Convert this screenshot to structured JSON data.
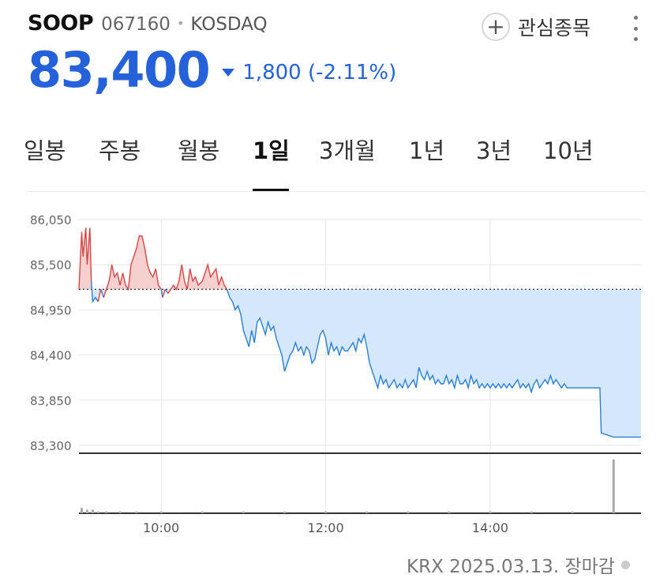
{
  "stock": {
    "name": "SOOP",
    "code": "067160",
    "market": "KOSDAQ",
    "price": "83,400",
    "change": "1,800 (-2.11%)",
    "direction": "down"
  },
  "actions": {
    "watch_label": "관심종목",
    "plus_glyph": "+"
  },
  "tabs": [
    {
      "label": "일봉",
      "active": false
    },
    {
      "label": "주봉",
      "active": false
    },
    {
      "label": "월봉",
      "active": false
    },
    {
      "label": "1일",
      "active": true
    },
    {
      "label": "3개월",
      "active": false
    },
    {
      "label": "1년",
      "active": false
    },
    {
      "label": "3년",
      "active": false
    },
    {
      "label": "10년",
      "active": false
    }
  ],
  "footer": {
    "text": "KRX 2025.03.13. 장마감"
  },
  "colors": {
    "accent": "#2561d8",
    "up": "#d64646",
    "down": "#2a7fd4",
    "down_fill": "#d5e8fb",
    "up_fill": "#f6cfcf"
  },
  "chart_data": {
    "type": "line",
    "title": "",
    "xlabel": "",
    "ylabel": "",
    "y_ticks": [
      "86,050",
      "85,500",
      "84,950",
      "84,400",
      "83,850",
      "83,300"
    ],
    "y_tick_values": [
      86050,
      85500,
      84950,
      84400,
      83850,
      83300
    ],
    "ylim": [
      83300,
      86050
    ],
    "x_ticks": [
      "10:00",
      "12:00",
      "14:00"
    ],
    "x_tick_times": [
      "10:00",
      "12:00",
      "14:00"
    ],
    "xlim": [
      "09:00",
      "15:50"
    ],
    "previous_close": 85200,
    "grid": true,
    "series": [
      {
        "values": [
          [
            "09:00",
            85200
          ],
          [
            "09:02",
            85900
          ],
          [
            "09:03",
            85600
          ],
          [
            "09:05",
            85950
          ],
          [
            "09:06",
            85500
          ],
          [
            "09:08",
            85950
          ],
          [
            "09:09",
            85300
          ],
          [
            "09:10",
            85050
          ],
          [
            "09:12",
            85100
          ],
          [
            "09:14",
            85050
          ],
          [
            "09:16",
            85200
          ],
          [
            "09:18",
            85100
          ],
          [
            "09:20",
            85200
          ],
          [
            "09:22",
            85300
          ],
          [
            "09:24",
            85500
          ],
          [
            "09:26",
            85350
          ],
          [
            "09:28",
            85400
          ],
          [
            "09:30",
            85250
          ],
          [
            "09:32",
            85400
          ],
          [
            "09:34",
            85250
          ],
          [
            "09:36",
            85200
          ],
          [
            "09:38",
            85500
          ],
          [
            "09:40",
            85600
          ],
          [
            "09:42",
            85700
          ],
          [
            "09:44",
            85850
          ],
          [
            "09:46",
            85850
          ],
          [
            "09:48",
            85700
          ],
          [
            "09:50",
            85500
          ],
          [
            "09:52",
            85400
          ],
          [
            "09:54",
            85350
          ],
          [
            "09:56",
            85450
          ],
          [
            "09:58",
            85250
          ],
          [
            "10:00",
            85200
          ],
          [
            "10:01",
            85100
          ],
          [
            "10:03",
            85200
          ],
          [
            "10:05",
            85150
          ],
          [
            "10:07",
            85200
          ],
          [
            "10:09",
            85250
          ],
          [
            "10:11",
            85200
          ],
          [
            "10:13",
            85300
          ],
          [
            "10:15",
            85500
          ],
          [
            "10:17",
            85300
          ],
          [
            "10:19",
            85200
          ],
          [
            "10:21",
            85450
          ],
          [
            "10:23",
            85300
          ],
          [
            "10:25",
            85350
          ],
          [
            "10:27",
            85250
          ],
          [
            "10:30",
            85300
          ],
          [
            "10:32",
            85400
          ],
          [
            "10:34",
            85500
          ],
          [
            "10:36",
            85350
          ],
          [
            "10:38",
            85400
          ],
          [
            "10:40",
            85450
          ],
          [
            "10:42",
            85250
          ],
          [
            "10:44",
            85350
          ],
          [
            "10:46",
            85250
          ],
          [
            "10:48",
            85200
          ],
          [
            "10:50",
            85100
          ],
          [
            "10:52",
            85050
          ],
          [
            "10:54",
            84950
          ],
          [
            "10:56",
            85000
          ],
          [
            "10:58",
            84900
          ],
          [
            "11:00",
            84700
          ],
          [
            "11:02",
            84600
          ],
          [
            "11:04",
            84500
          ],
          [
            "11:06",
            84700
          ],
          [
            "11:08",
            84550
          ],
          [
            "11:10",
            84800
          ],
          [
            "11:12",
            84850
          ],
          [
            "11:14",
            84750
          ],
          [
            "11:16",
            84650
          ],
          [
            "11:18",
            84800
          ],
          [
            "11:20",
            84700
          ],
          [
            "11:22",
            84750
          ],
          [
            "11:24",
            84600
          ],
          [
            "11:26",
            84500
          ],
          [
            "11:28",
            84400
          ],
          [
            "11:30",
            84200
          ],
          [
            "11:32",
            84300
          ],
          [
            "11:34",
            84400
          ],
          [
            "11:36",
            84450
          ],
          [
            "11:38",
            84550
          ],
          [
            "11:40",
            84450
          ],
          [
            "11:42",
            84500
          ],
          [
            "11:44",
            84400
          ],
          [
            "11:46",
            84500
          ],
          [
            "11:48",
            84450
          ],
          [
            "11:50",
            84300
          ],
          [
            "11:52",
            84350
          ],
          [
            "11:54",
            84500
          ],
          [
            "11:56",
            84650
          ],
          [
            "11:58",
            84700
          ],
          [
            "12:00",
            84600
          ],
          [
            "12:02",
            84400
          ],
          [
            "12:04",
            84550
          ],
          [
            "12:06",
            84450
          ],
          [
            "12:08",
            84500
          ],
          [
            "12:10",
            84400
          ],
          [
            "12:12",
            84500
          ],
          [
            "12:14",
            84450
          ],
          [
            "12:16",
            84450
          ],
          [
            "12:18",
            84500
          ],
          [
            "12:20",
            84550
          ],
          [
            "12:22",
            84450
          ],
          [
            "12:24",
            84600
          ],
          [
            "12:26",
            84550
          ],
          [
            "12:28",
            84650
          ],
          [
            "12:30",
            84500
          ],
          [
            "12:32",
            84300
          ],
          [
            "12:34",
            84200
          ],
          [
            "12:36",
            84100
          ],
          [
            "12:38",
            84000
          ],
          [
            "12:40",
            84150
          ],
          [
            "12:42",
            84050
          ],
          [
            "12:44",
            84100
          ],
          [
            "12:46",
            84000
          ],
          [
            "12:48",
            84050
          ],
          [
            "12:50",
            84100
          ],
          [
            "12:52",
            84000
          ],
          [
            "12:54",
            84050
          ],
          [
            "12:56",
            84000
          ],
          [
            "12:58",
            84100
          ],
          [
            "13:00",
            84000
          ],
          [
            "13:02",
            84050
          ],
          [
            "13:04",
            84100
          ],
          [
            "13:06",
            84000
          ],
          [
            "13:08",
            84250
          ],
          [
            "13:10",
            84150
          ],
          [
            "13:12",
            84100
          ],
          [
            "13:14",
            84200
          ],
          [
            "13:16",
            84100
          ],
          [
            "13:18",
            84150
          ],
          [
            "13:20",
            84050
          ],
          [
            "13:22",
            84100
          ],
          [
            "13:24",
            84050
          ],
          [
            "13:26",
            84050
          ],
          [
            "13:28",
            84150
          ],
          [
            "13:30",
            84050
          ],
          [
            "13:32",
            84100
          ],
          [
            "13:34",
            84000
          ],
          [
            "13:36",
            84150
          ],
          [
            "13:38",
            84050
          ],
          [
            "13:40",
            84050
          ],
          [
            "13:42",
            84100
          ],
          [
            "13:44",
            84000
          ],
          [
            "13:46",
            84150
          ],
          [
            "13:48",
            84050
          ],
          [
            "13:50",
            84100
          ],
          [
            "13:52",
            84000
          ],
          [
            "13:54",
            84050
          ],
          [
            "13:56",
            84000
          ],
          [
            "13:58",
            84050
          ],
          [
            "14:00",
            84000
          ],
          [
            "14:02",
            84050
          ],
          [
            "14:04",
            84000
          ],
          [
            "14:06",
            84050
          ],
          [
            "14:08",
            84000
          ],
          [
            "14:10",
            84050
          ],
          [
            "14:12",
            84000
          ],
          [
            "14:14",
            84050
          ],
          [
            "14:16",
            84000
          ],
          [
            "14:18",
            84050
          ],
          [
            "14:20",
            84100
          ],
          [
            "14:22",
            84000
          ],
          [
            "14:24",
            84050
          ],
          [
            "14:26",
            84000
          ],
          [
            "14:28",
            84050
          ],
          [
            "14:30",
            83950
          ],
          [
            "14:32",
            84050
          ],
          [
            "14:34",
            84100
          ],
          [
            "14:36",
            84000
          ],
          [
            "14:38",
            84050
          ],
          [
            "14:40",
            84100
          ],
          [
            "14:42",
            84050
          ],
          [
            "14:44",
            84150
          ],
          [
            "14:46",
            84050
          ],
          [
            "14:48",
            84100
          ],
          [
            "14:50",
            84050
          ],
          [
            "14:52",
            84000
          ],
          [
            "14:54",
            84050
          ],
          [
            "14:56",
            84000
          ],
          [
            "15:00",
            84000
          ],
          [
            "15:10",
            84000
          ],
          [
            "15:20",
            84000
          ],
          [
            "15:21",
            83450
          ],
          [
            "15:30",
            83400
          ],
          [
            "15:40",
            83400
          ],
          [
            "15:50",
            83400
          ]
        ]
      }
    ],
    "volume": {
      "values": [
        [
          "09:02",
          3
        ],
        [
          "09:06",
          2
        ],
        [
          "09:10",
          2
        ],
        [
          "09:14",
          1
        ],
        [
          "09:20",
          1
        ],
        [
          "09:30",
          1
        ],
        [
          "09:42",
          1
        ],
        [
          "10:00",
          1
        ],
        [
          "10:30",
          1
        ],
        [
          "11:00",
          1
        ],
        [
          "11:30",
          1
        ],
        [
          "12:00",
          1
        ],
        [
          "12:30",
          1
        ],
        [
          "13:00",
          1
        ],
        [
          "13:30",
          1
        ],
        [
          "14:00",
          1
        ],
        [
          "14:30",
          1
        ],
        [
          "15:00",
          1
        ],
        [
          "15:30",
          30
        ]
      ],
      "max": 30
    }
  }
}
